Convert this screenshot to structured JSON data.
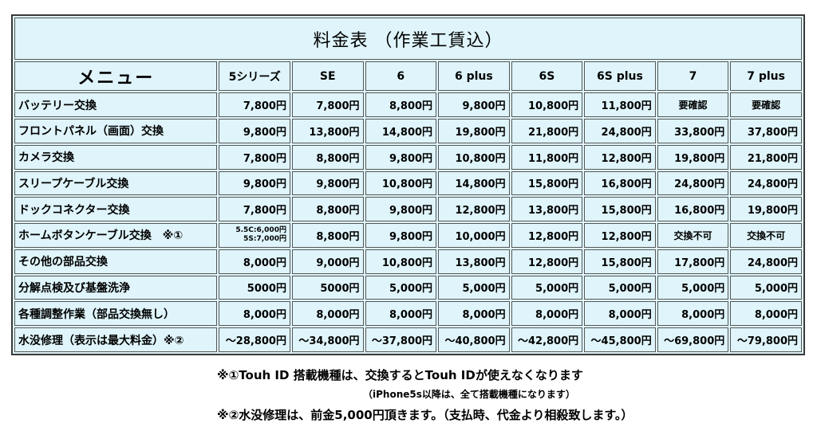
{
  "title": "料金表 （作業工賃込）",
  "header": {
    "menu": "メニュー",
    "models": [
      "5シリーズ",
      "SE",
      "6",
      "6 plus",
      "6S",
      "6S plus",
      "7",
      "7 plus"
    ]
  },
  "rows": [
    {
      "label": "バッテリー交換",
      "values": [
        "7,800円",
        "7,800円",
        "8,800円",
        "9,800円",
        "10,800円",
        "11,800円",
        "要確認",
        "要確認"
      ]
    },
    {
      "label": "フロントパネル（画面）交換",
      "values": [
        "9,800円",
        "13,800円",
        "14,800円",
        "19,800円",
        "21,800円",
        "24,800円",
        "33,800円",
        "37,800円"
      ]
    },
    {
      "label": "カメラ交換",
      "values": [
        "7,800円",
        "8,800円",
        "9,800円",
        "10,800円",
        "11,800円",
        "12,800円",
        "19,800円",
        "21,800円"
      ]
    },
    {
      "label": "スリープケーブル交換",
      "values": [
        "9,800円",
        "9,800円",
        "10,800円",
        "14,800円",
        "15,800円",
        "16,800円",
        "24,800円",
        "24,800円"
      ]
    },
    {
      "label": "ドックコネクター交換",
      "values": [
        "7,800円",
        "8,800円",
        "9,800円",
        "12,800円",
        "13,800円",
        "15,800円",
        "16,800円",
        "19,800円"
      ]
    },
    {
      "label": "ホームボタンケーブル交換　※①",
      "values": [
        "5.5C:6,000円",
        "8,800円",
        "9,800円",
        "10,000円",
        "12,800円",
        "12,800円",
        "交換不可",
        "交換不可"
      ],
      "extra": "5S:7,000円"
    },
    {
      "label": "その他の部品交換",
      "values": [
        "8,000円",
        "9,000円",
        "10,800円",
        "13,800円",
        "12,800円",
        "15,800円",
        "17,800円",
        "24,800円"
      ]
    },
    {
      "label": "分解点検及び基盤洗浄",
      "values": [
        "5000円",
        "5000円",
        "5,000円",
        "5,000円",
        "5,000円",
        "5,000円",
        "5,000円",
        "5,000円"
      ]
    },
    {
      "label": "各種調整作業（部品交換無し）",
      "values": [
        "8,000円",
        "8,000円",
        "8,000円",
        "8,000円",
        "8,000円",
        "8,000円",
        "8,000円",
        "8,000円"
      ]
    },
    {
      "label": "水没修理（表示は最大料金）※②",
      "values": [
        "～28,800円",
        "～34,800円",
        "～37,800円",
        "～40,800円",
        "～42,800円",
        "～45,800円",
        "～69,800円",
        "～79,800円"
      ]
    }
  ],
  "notes": {
    "note1": "※①Touh ID 搭載機種は、交換するとTouh IDが使えなくなります",
    "note2": "（iPhone5s以降は、全て搭載機種になります）",
    "note3": "※②水没修理は、前金5,000円頂きます。（支払時、代金より相殺致します。）"
  }
}
